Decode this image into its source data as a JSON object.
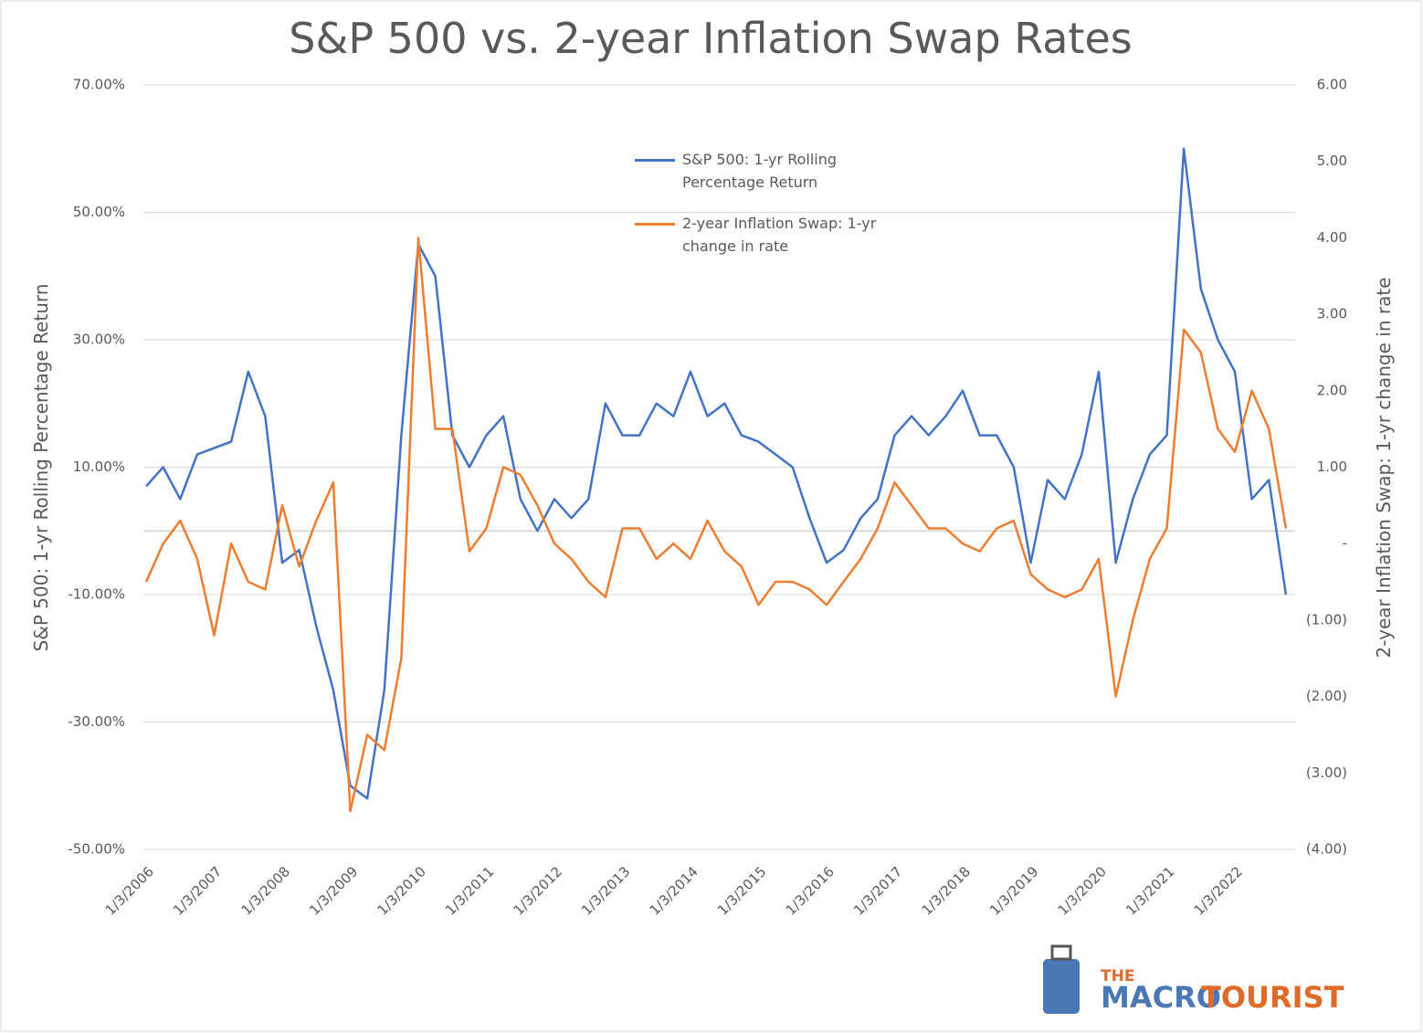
{
  "chart_data": {
    "type": "line",
    "title": "S&P 500 vs. 2-year Inflation Swap Rates",
    "y_label": "S&P 500: 1-yr Rolling Percentage Return",
    "y2_label": "2-year Inflation Swap: 1-yr change in rate",
    "categories": [
      "1/3/2006",
      null,
      null,
      null,
      "1/3/2007",
      null,
      null,
      null,
      "1/3/2008",
      null,
      null,
      null,
      "1/3/2009",
      null,
      null,
      null,
      "1/3/2010",
      null,
      null,
      null,
      "1/3/2011",
      null,
      null,
      null,
      "1/3/2012",
      null,
      null,
      null,
      "1/3/2013",
      null,
      null,
      null,
      "1/3/2014",
      null,
      null,
      null,
      "1/3/2015",
      null,
      null,
      null,
      "1/3/2016",
      null,
      null,
      null,
      "1/3/2017",
      null,
      null,
      null,
      "1/3/2018",
      null,
      null,
      null,
      "1/3/2019",
      null,
      null,
      null,
      "1/3/2020",
      null,
      null,
      null,
      "1/3/2021",
      null,
      null,
      null,
      "1/3/2022",
      null,
      null,
      null
    ],
    "series": [
      {
        "name": "S&P 500: 1-yr Rolling Percentage Return",
        "color": "#4472c4",
        "values": [
          7,
          10,
          5,
          12,
          13,
          14,
          25,
          18,
          -5,
          -3,
          -15,
          -25,
          -40,
          -42,
          -25,
          15,
          45,
          40,
          15,
          10,
          15,
          18,
          5,
          0,
          5,
          2,
          5,
          20,
          15,
          15,
          20,
          18,
          25,
          18,
          20,
          15,
          14,
          12,
          10,
          2,
          -5,
          -3,
          2,
          5,
          15,
          18,
          15,
          18,
          22,
          15,
          15,
          10,
          -5,
          8,
          5,
          12,
          25,
          -5,
          5,
          12,
          15,
          60,
          38,
          30,
          25,
          5,
          8,
          -10
        ]
      },
      {
        "name": "2-year Inflation Swap: 1-yr change in rate",
        "color": "#ed7d31",
        "axis": "y2",
        "values": [
          -0.5,
          0,
          0.3,
          -0.2,
          -1.2,
          0,
          -0.5,
          -0.6,
          0.5,
          -0.3,
          0.3,
          0.8,
          -3.5,
          -2.5,
          -2.7,
          -1.5,
          4.0,
          1.5,
          1.5,
          -0.1,
          0.2,
          1.0,
          0.9,
          0.5,
          0,
          -0.2,
          -0.5,
          -0.7,
          0.2,
          0.2,
          -0.2,
          0,
          -0.2,
          0.3,
          -0.1,
          -0.3,
          -0.8,
          -0.5,
          -0.5,
          -0.6,
          -0.8,
          -0.5,
          -0.2,
          0.2,
          0.8,
          0.5,
          0.2,
          0.2,
          0,
          -0.1,
          0.2,
          0.3,
          -0.4,
          -0.6,
          -0.7,
          -0.6,
          -0.2,
          -2.0,
          -1.0,
          -0.2,
          0.2,
          2.8,
          2.5,
          1.5,
          1.2,
          2.0,
          1.5,
          0.2
        ]
      }
    ],
    "ylim": [
      -50,
      70
    ],
    "yticks": [
      {
        "value": 70,
        "label": "70.00%"
      },
      {
        "value": 50,
        "label": "50.00%"
      },
      {
        "value": 30,
        "label": "30.00%"
      },
      {
        "value": 10,
        "label": "10.00%"
      },
      {
        "value": -10,
        "label": "-10.00%"
      },
      {
        "value": -30,
        "label": "-30.00%"
      },
      {
        "value": -50,
        "label": "-50.00%"
      }
    ],
    "y2lim": [
      -4,
      6
    ],
    "y2ticks": [
      {
        "value": 6,
        "label": "6.00"
      },
      {
        "value": 5,
        "label": "5.00"
      },
      {
        "value": 4,
        "label": "4.00"
      },
      {
        "value": 3,
        "label": "3.00"
      },
      {
        "value": 2,
        "label": "2.00"
      },
      {
        "value": 1,
        "label": "1.00"
      },
      {
        "value": 0,
        "label": "-"
      },
      {
        "value": -1,
        "label": "(1.00)"
      },
      {
        "value": -2,
        "label": "(2.00)"
      },
      {
        "value": -3,
        "label": "(3.00)"
      },
      {
        "value": -4,
        "label": "(4.00)"
      }
    ],
    "grid": true,
    "logo": {
      "top": "THE",
      "left": "MACRO",
      "right": "TOURIST"
    }
  }
}
